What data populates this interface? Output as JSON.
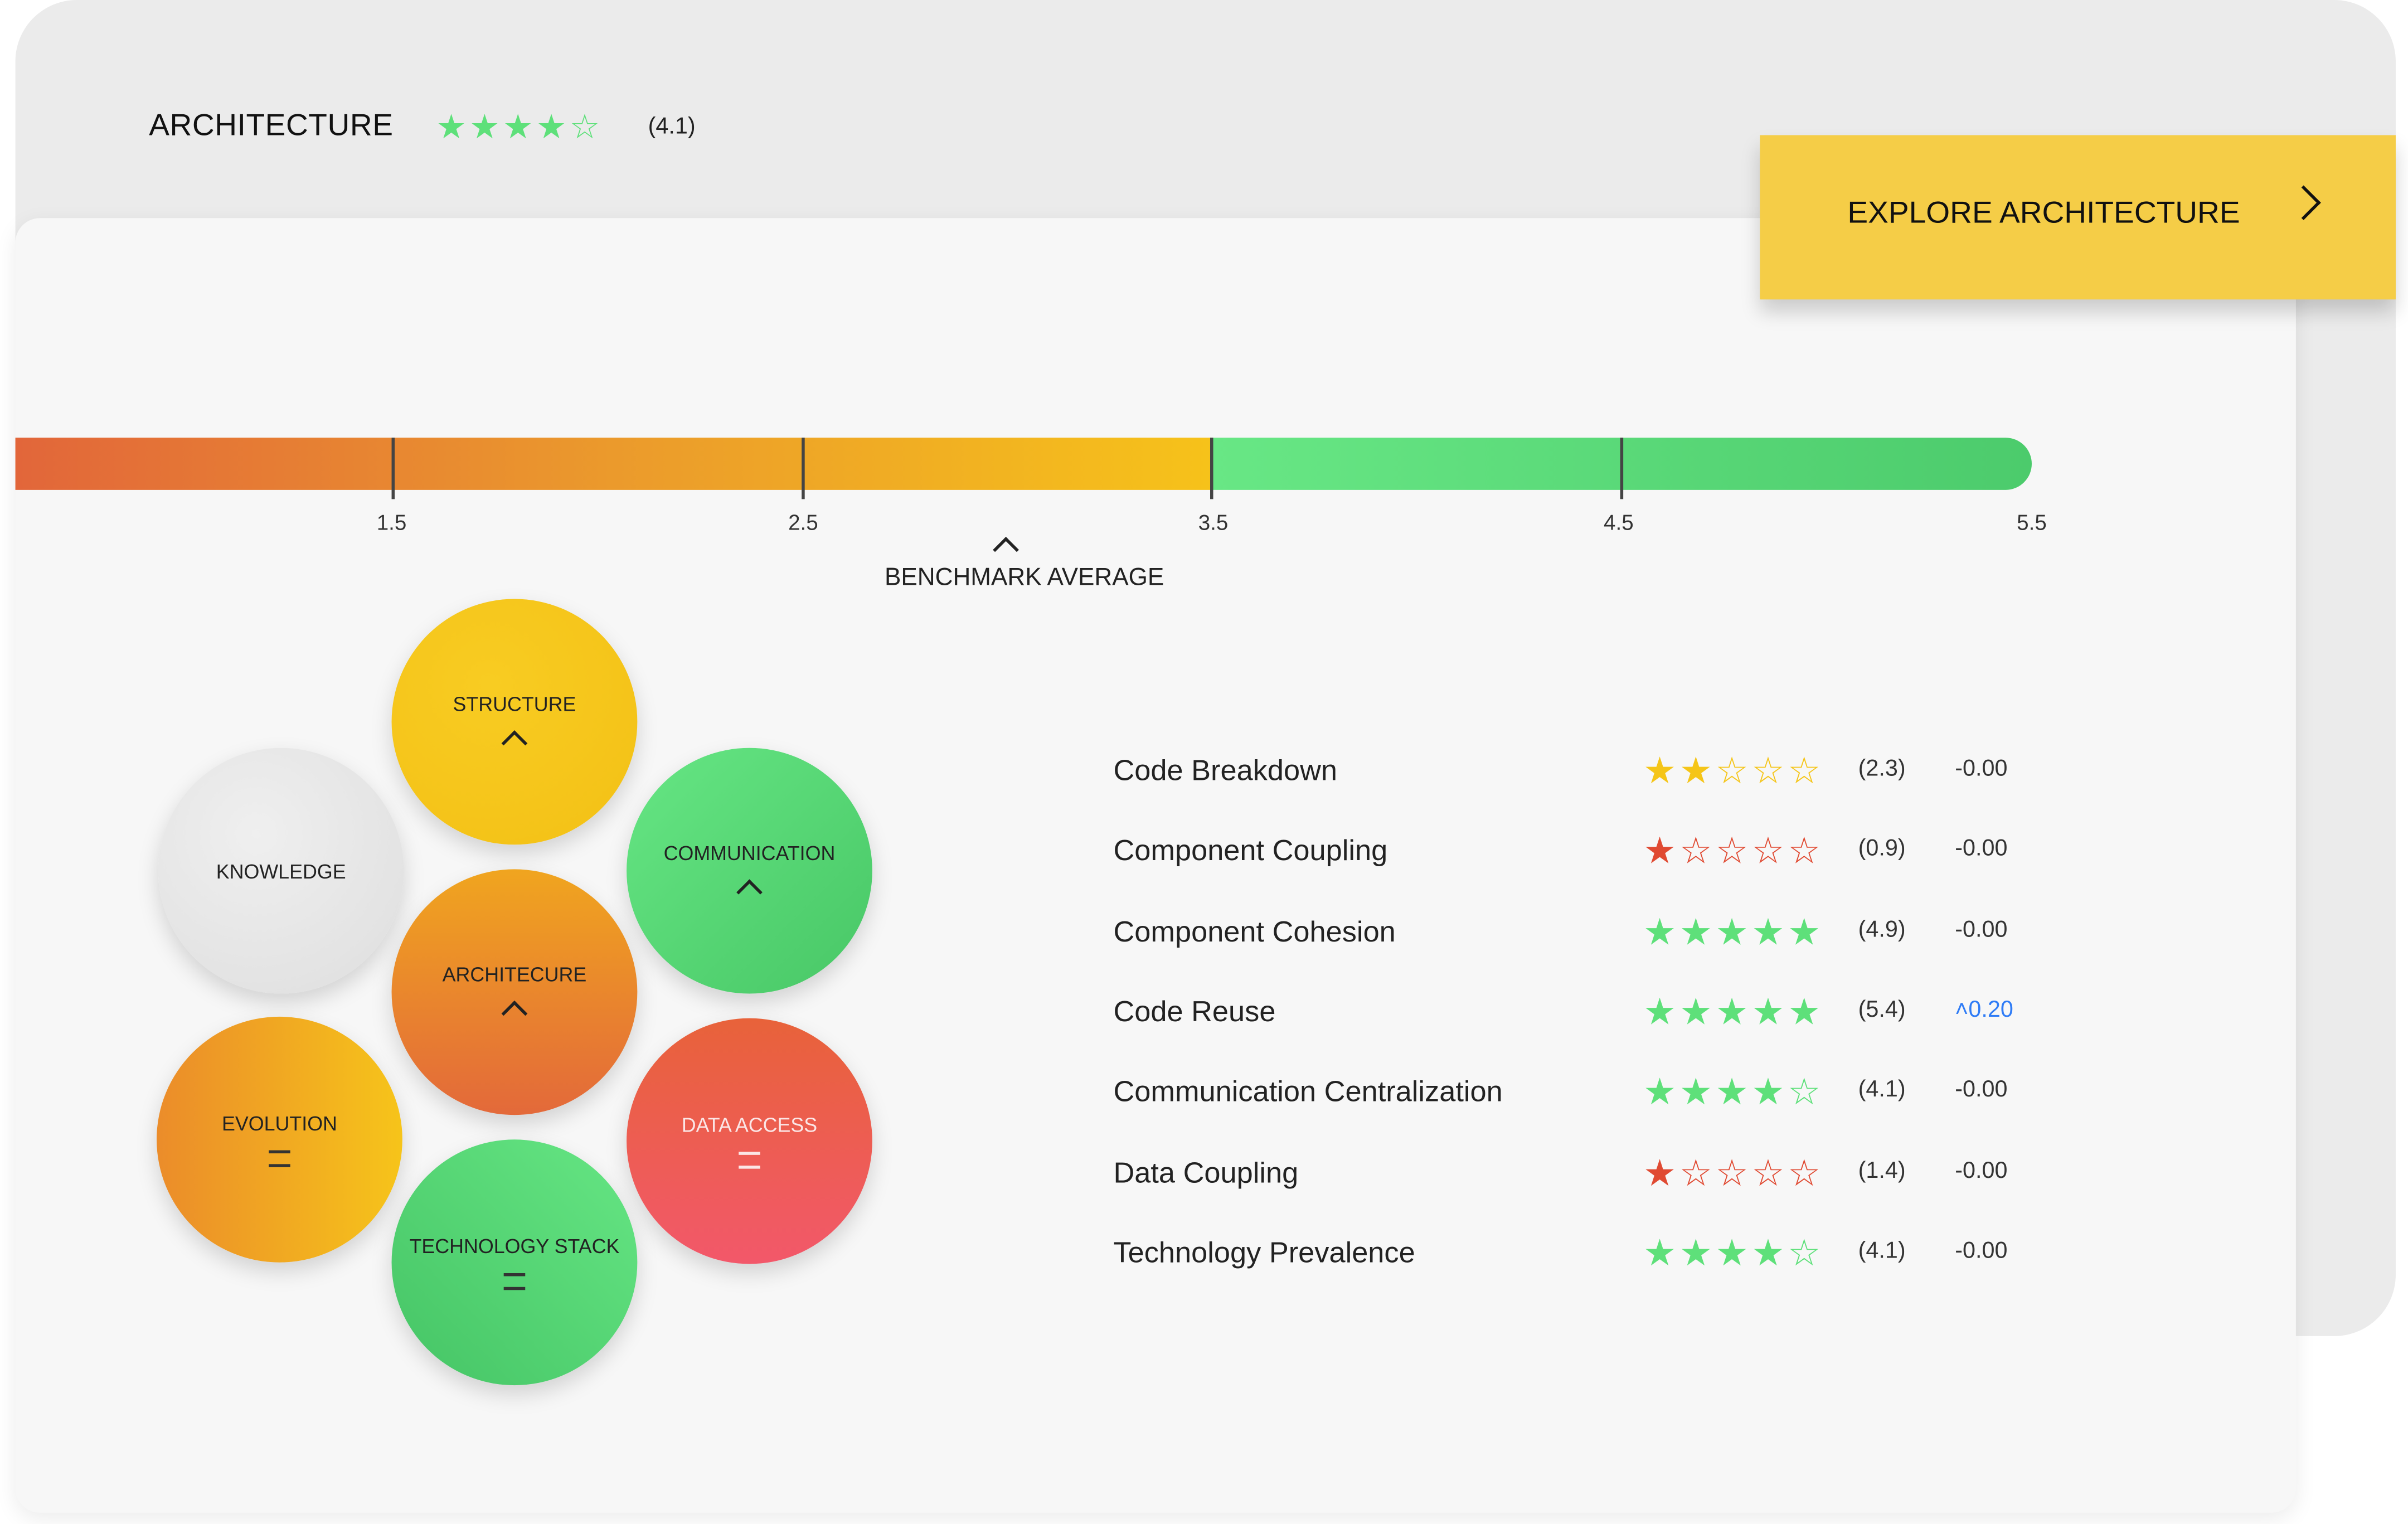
{
  "header": {
    "title": "ARCHITECTURE",
    "rating": 4.1,
    "rating_label": "(4.1)",
    "star_color": "#5ee07a"
  },
  "explore_button": {
    "label": "EXPLORE ARCHITECTURE"
  },
  "scale": {
    "ticks": [
      "1.5",
      "2.5",
      "3.5",
      "4.5",
      "5.5"
    ],
    "benchmark_label": "BENCHMARK AVERAGE",
    "benchmark_value": 3.0
  },
  "circles": [
    {
      "label": "STRUCTURE",
      "trend": "up"
    },
    {
      "label": "KNOWLEDGE",
      "trend": "none"
    },
    {
      "label": "COMMUNICATION",
      "trend": "up"
    },
    {
      "label": "ARCHITECURE",
      "trend": "up"
    },
    {
      "label": "EVOLUTION",
      "trend": "equal"
    },
    {
      "label": "DATA ACCESS",
      "trend": "equal"
    },
    {
      "label": "TECHNOLOGY STACK",
      "trend": "equal"
    }
  ],
  "metrics": [
    {
      "label": "Code Breakdown",
      "stars": 2,
      "value": "(2.3)",
      "delta": "-0.00",
      "color": "#f5c518"
    },
    {
      "label": "Component Coupling",
      "stars": 1,
      "value": "(0.9)",
      "delta": "-0.00",
      "color": "#e04a32"
    },
    {
      "label": "Component Cohesion",
      "stars": 5,
      "value": "(4.9)",
      "delta": "-0.00",
      "color": "#5ee07a"
    },
    {
      "label": "Code Reuse",
      "stars": 5,
      "value": "(5.4)",
      "delta": "˄0.20",
      "color": "#5ee07a",
      "delta_color": "#2f7cf6"
    },
    {
      "label": "Communication Centralization",
      "stars": 4,
      "value": "(4.1)",
      "delta": "-0.00",
      "color": "#5ee07a"
    },
    {
      "label": "Data Coupling",
      "stars": 1,
      "value": "(1.4)",
      "delta": "-0.00",
      "color": "#e04a32"
    },
    {
      "label": "Technology Prevalence",
      "stars": 4,
      "value": "(4.1)",
      "delta": "-0.00",
      "color": "#5ee07a"
    }
  ]
}
